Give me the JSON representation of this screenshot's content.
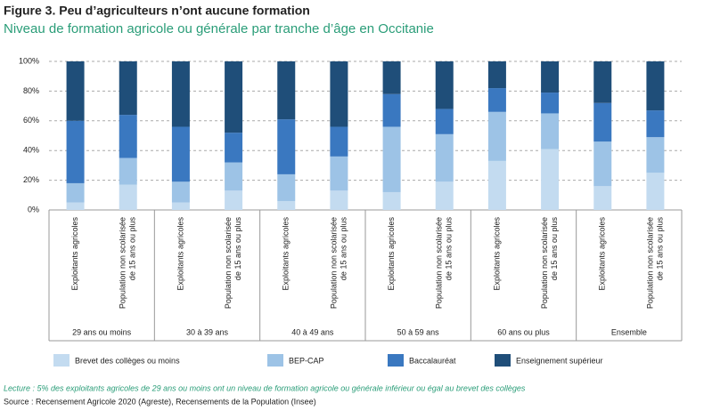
{
  "chart_data": {
    "type": "stacked-bar",
    "title": "Figure 3. Peu d’agriculteurs n’ont aucune formation",
    "subtitle": "Niveau de formation agricole ou générale par tranche d’âge en Occitanie",
    "groups": [
      "29 ans ou moins",
      "30 à 39 ans",
      "40 à 49 ans",
      "50 à 59 ans",
      "60 ans ou plus",
      "Ensemble"
    ],
    "categories": [
      [
        "Exploitants agricoles"
      ],
      [
        "Population non scolarisée",
        "de 15 ans ou plus"
      ],
      [
        "Exploitants agricoles"
      ],
      [
        "Population non scolarisée",
        "de 15 ans ou plus"
      ],
      [
        "Exploitants agricoles"
      ],
      [
        "Population non scolarisée",
        "de 15 ans ou plus"
      ],
      [
        "Exploitants agricoles"
      ],
      [
        "Population non scolarisée",
        "de 15 ans ou plus"
      ],
      [
        "Exploitants agricoles"
      ],
      [
        "Population non scolarisée",
        "de 15 ans ou plus"
      ],
      [
        "Exploitants agricoles"
      ],
      [
        "Population non scolarisée",
        "de 15 ans ou plus"
      ]
    ],
    "series": [
      {
        "name": "Brevet des collèges ou moins",
        "color": "#c3dbf0",
        "values": [
          5,
          17,
          5,
          13,
          6,
          13,
          12,
          19,
          33,
          41,
          16,
          25
        ]
      },
      {
        "name": "BEP-CAP",
        "color": "#9dc3e6",
        "values": [
          13,
          18,
          14,
          19,
          18,
          23,
          44,
          32,
          33,
          24,
          30,
          24
        ]
      },
      {
        "name": "Baccalauréat",
        "color": "#3a78c0",
        "values": [
          42,
          29,
          37,
          20,
          37,
          20,
          22,
          17,
          16,
          14,
          26,
          18
        ]
      },
      {
        "name": "Enseignement supérieur",
        "color": "#1f4e79",
        "values": [
          40,
          36,
          44,
          48,
          39,
          44,
          22,
          32,
          18,
          21,
          28,
          33
        ]
      }
    ],
    "ylim": [
      0,
      100
    ],
    "yticks": [
      {
        "value": 0,
        "label": "0%"
      },
      {
        "value": 20,
        "label": "20%"
      },
      {
        "value": 40,
        "label": "40%"
      },
      {
        "value": 60,
        "label": "60%"
      },
      {
        "value": 80,
        "label": "80%"
      },
      {
        "value": 100,
        "label": "100%"
      }
    ],
    "grid": true,
    "legend": "bottom",
    "note": "Lecture : 5% des exploitants agricoles de 29 ans ou moins ont un niveau de formation agricole ou générale inférieur ou égal au brevet des collèges",
    "source": "Source :  Recensement Agricole 2020 (Agreste), Recensements de la Population (Insee)"
  }
}
